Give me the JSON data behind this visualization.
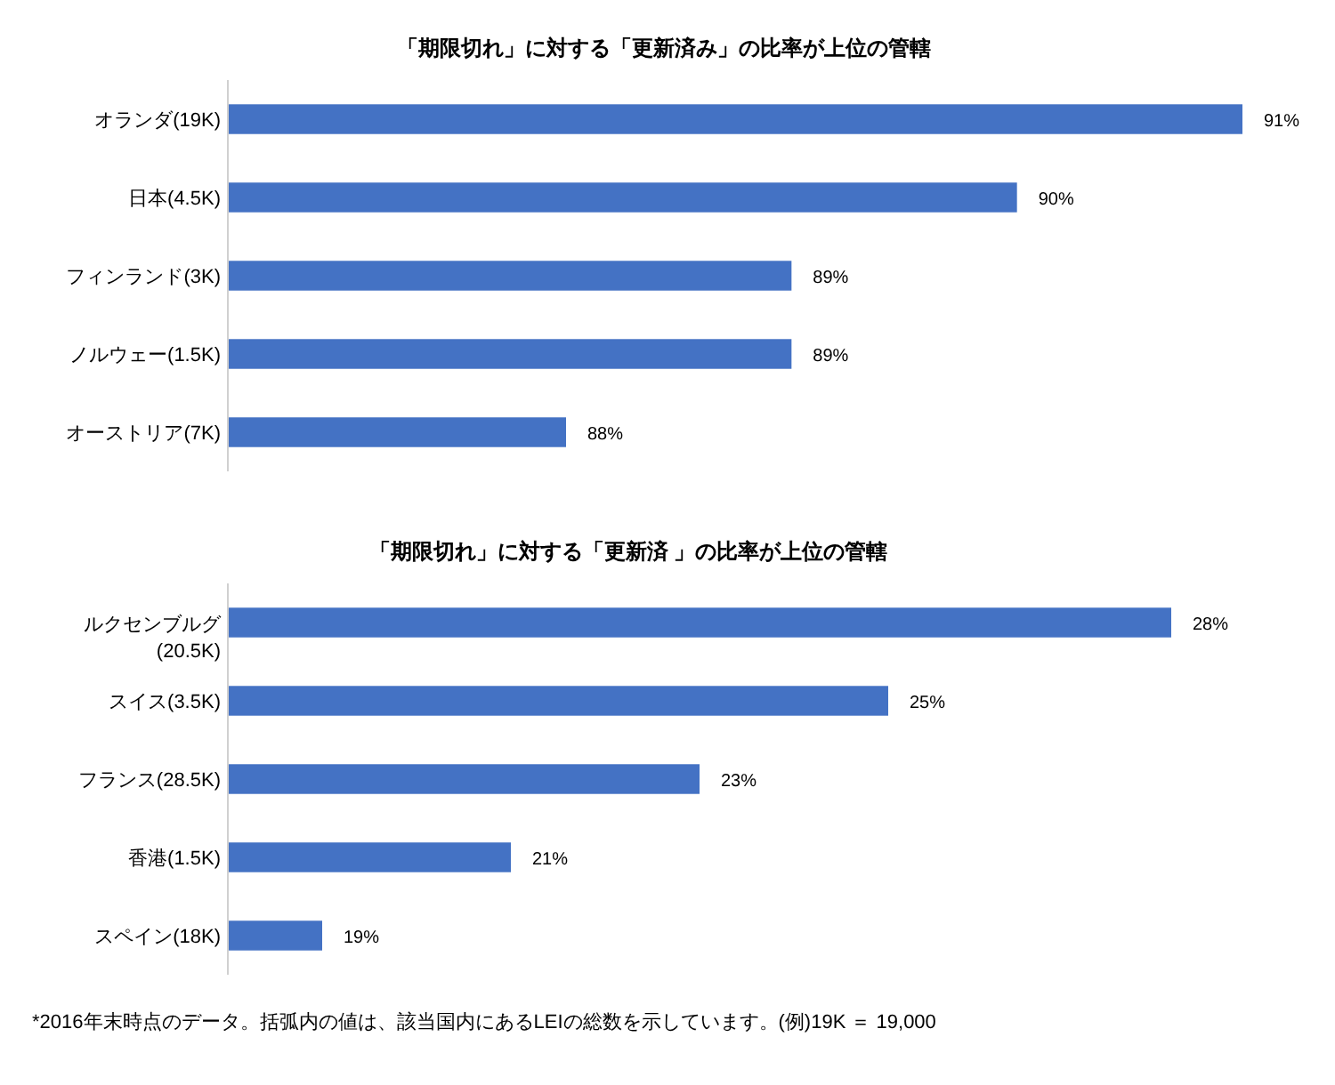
{
  "chart_data": [
    {
      "type": "bar",
      "orientation": "horizontal",
      "title": "「期限切れ」に対する「更新済み」の比率が上位の管轄",
      "categories": [
        "オランダ(19K)",
        "日本(4.5K)",
        "フィンランド(3K)",
        "ノルウェー(1.5K)",
        "オーストリア(7K)"
      ],
      "values": [
        91,
        90,
        89,
        89,
        88
      ],
      "value_labels": [
        "91%",
        "90%",
        "89%",
        "89%",
        "88%"
      ],
      "color": "#4472c4",
      "xlim": [
        86.5,
        91
      ],
      "tick_labels": "y"
    },
    {
      "type": "bar",
      "orientation": "horizontal",
      "title": "「期限切れ」に対する「更新済 」の比率が上位の管轄",
      "categories": [
        "ルクセンブルグ\n(20.5K)",
        "スイス(3.5K)",
        "フランス(28.5K)",
        "香港(1.5K)",
        "スペイン(18K)"
      ],
      "values": [
        28,
        25,
        23,
        21,
        19
      ],
      "value_labels": [
        "28%",
        "25%",
        "23%",
        "21%",
        "19%"
      ],
      "color": "#4472c4",
      "xlim": [
        18,
        28
      ],
      "tick_labels": "y",
      "annotations": [
        "*2016年末時点のデータ。括弧内の値は、該当国内にあるLEIの総数を示しています。(例)19K ＝ 19,000"
      ]
    }
  ]
}
